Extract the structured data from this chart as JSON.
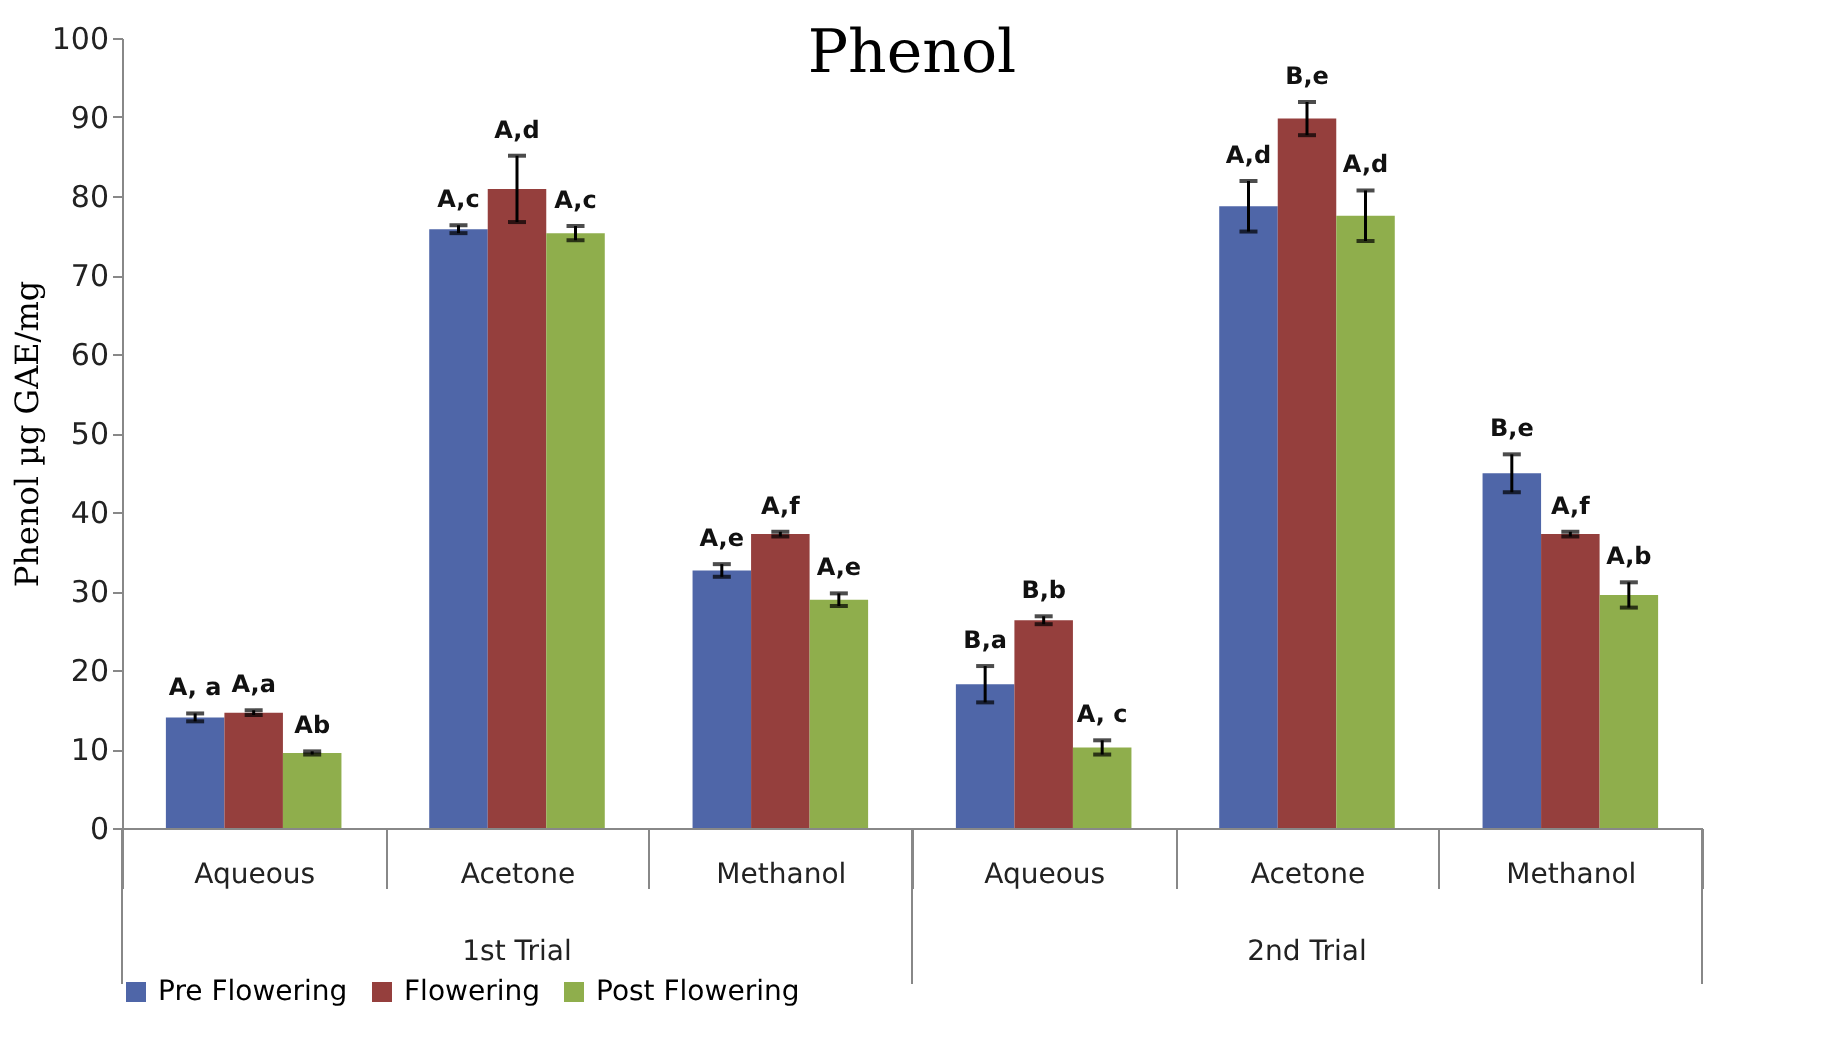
{
  "chart_data": {
    "type": "bar",
    "title": "Phenol",
    "ylabel": "Phenol µg GAE/mg",
    "categories": [
      "Aqueous",
      "Acetone",
      "Methanol",
      "Aqueous",
      "Acetone",
      "Methanol"
    ],
    "series": [
      {
        "name": "Pre Flowering",
        "color": "#4f66a8",
        "values": [
          14.0,
          75.8,
          32.6,
          18.2,
          78.7,
          44.9
        ],
        "errors": [
          0.5,
          0.5,
          0.8,
          2.3,
          3.2,
          2.4
        ],
        "value_labels": [
          "A, a",
          "A,c",
          "A,e",
          "B,a",
          "A,d",
          "B,e"
        ]
      },
      {
        "name": "Flowering",
        "color": "#953f3d",
        "values": [
          14.6,
          80.9,
          37.2,
          26.3,
          89.8,
          37.2
        ],
        "errors": [
          0.3,
          4.2,
          0.3,
          0.5,
          2.1,
          0.3
        ],
        "value_labels": [
          "A,a",
          "A,d",
          "A,f",
          "B,b",
          "B,e",
          "A,f"
        ]
      },
      {
        "name": "Post Flowering",
        "color": "#8fae4c",
        "values": [
          9.5,
          75.3,
          28.9,
          10.2,
          77.5,
          29.5
        ],
        "errors": [
          0.2,
          0.9,
          0.8,
          0.9,
          3.2,
          1.6
        ],
        "value_labels": [
          "Ab",
          "A,c",
          "A,e",
          "A, c",
          "A,d",
          "A,b"
        ]
      }
    ],
    "annotations": [
      "1st Trial",
      "2nd Trial"
    ],
    "ylim": [
      0,
      100
    ],
    "yticks": [
      0,
      10,
      20,
      30,
      40,
      50,
      60,
      70,
      80,
      90,
      100
    ],
    "grid": false,
    "legend": "bottom"
  }
}
